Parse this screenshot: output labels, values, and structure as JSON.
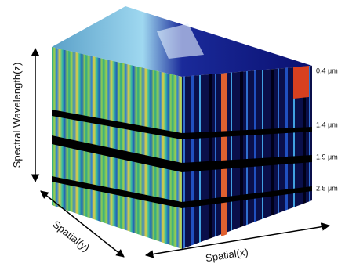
{
  "axes": {
    "z": "Spectral Wavelength(z)",
    "y": "Spatial(y)",
    "x": "Spatial(x)"
  },
  "wavelengths": [
    "0.4 μm",
    "1.4 μm",
    "1.9 μm",
    "2.5 μm"
  ]
}
